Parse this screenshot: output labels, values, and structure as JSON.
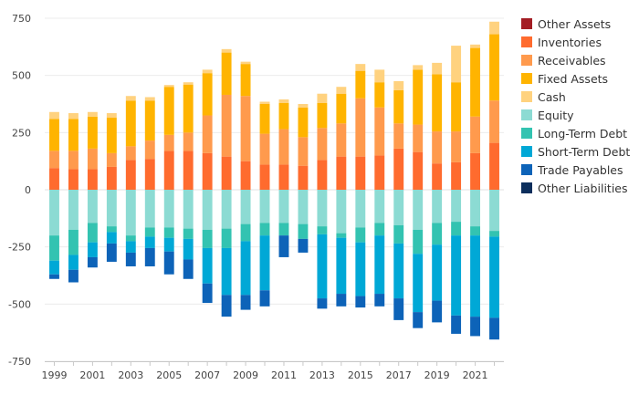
{
  "chart_data": {
    "type": "bar",
    "stacked": true,
    "diverging": true,
    "title": "",
    "xlabel": "",
    "ylabel": "",
    "ylim": [
      -750,
      750
    ],
    "yticks": [
      750,
      500,
      250,
      0,
      -250,
      -500,
      -750
    ],
    "ytick_labels": [
      "750",
      "500",
      "250",
      "0",
      "-250",
      "-500",
      "-750"
    ],
    "xticks": [
      1999,
      2001,
      2003,
      2005,
      2007,
      2009,
      2011,
      2013,
      2015,
      2017,
      2019,
      2021
    ],
    "xtick_labels": [
      "1999",
      "2001",
      "2003",
      "2005",
      "2007",
      "2009",
      "2011",
      "2013",
      "2015",
      "2017",
      "2019",
      "2021"
    ],
    "grid": "horizontal",
    "legend_position": "right",
    "x": [
      1999,
      2000,
      2001,
      2002,
      2003,
      2004,
      2005,
      2006,
      2007,
      2008,
      2009,
      2010,
      2011,
      2012,
      2013,
      2014,
      2015,
      2016,
      2017,
      2018,
      2019,
      2020,
      2021,
      2022
    ],
    "series": [
      {
        "name": "Other Assets",
        "color": "#a31d24",
        "values": [
          0,
          0,
          0,
          0,
          0,
          0,
          0,
          0,
          0,
          0,
          0,
          0,
          0,
          0,
          0,
          0,
          0,
          0,
          0,
          0,
          0,
          0,
          0,
          0
        ]
      },
      {
        "name": "Inventories",
        "color": "#ff6b2e",
        "values": [
          95,
          90,
          90,
          100,
          130,
          135,
          170,
          170,
          160,
          145,
          125,
          110,
          110,
          105,
          130,
          145,
          145,
          150,
          180,
          165,
          115,
          120,
          160,
          205
        ]
      },
      {
        "name": "Receivables",
        "color": "#ff9a4d",
        "values": [
          75,
          80,
          90,
          60,
          60,
          80,
          70,
          80,
          165,
          270,
          285,
          135,
          155,
          125,
          140,
          145,
          255,
          210,
          110,
          120,
          140,
          135,
          160,
          185
        ]
      },
      {
        "name": "Fixed Assets",
        "color": "#ffb400",
        "values": [
          140,
          140,
          140,
          155,
          200,
          175,
          210,
          210,
          185,
          185,
          140,
          130,
          115,
          130,
          110,
          130,
          120,
          110,
          145,
          240,
          250,
          215,
          300,
          290
        ]
      },
      {
        "name": "Cash",
        "color": "#ffd27f",
        "values": [
          30,
          25,
          20,
          20,
          20,
          15,
          8,
          10,
          15,
          15,
          10,
          10,
          15,
          15,
          40,
          30,
          30,
          55,
          40,
          20,
          50,
          160,
          15,
          55
        ]
      },
      {
        "name": "Equity",
        "color": "#8cdbd3",
        "values": [
          -200,
          -175,
          -145,
          -160,
          -200,
          -165,
          -165,
          -170,
          -175,
          -170,
          -150,
          -145,
          -145,
          -150,
          -160,
          -190,
          -165,
          -145,
          -155,
          -175,
          -145,
          -140,
          -160,
          -180
        ]
      },
      {
        "name": "Long-Term Debt",
        "color": "#33c3b1",
        "values": [
          -110,
          -110,
          -85,
          -25,
          -25,
          -40,
          -45,
          -45,
          -80,
          -85,
          -75,
          -55,
          -55,
          -65,
          -35,
          -20,
          -65,
          -55,
          -80,
          -105,
          -95,
          -60,
          -40,
          -25
        ]
      },
      {
        "name": "Short-Term Debt",
        "color": "#00a8d6",
        "values": [
          -60,
          -65,
          -65,
          -50,
          -50,
          -50,
          -60,
          -90,
          -155,
          -205,
          -235,
          -240,
          0,
          0,
          -280,
          -245,
          -235,
          -255,
          -240,
          -255,
          -245,
          -350,
          -355,
          -355
        ]
      },
      {
        "name": "Trade Payables",
        "color": "#0d63b8",
        "values": [
          -20,
          -55,
          -45,
          -80,
          -60,
          -80,
          -100,
          -85,
          -85,
          -95,
          -65,
          -70,
          -95,
          -60,
          -45,
          -55,
          -50,
          -55,
          -95,
          -70,
          -95,
          -80,
          -85,
          -95
        ]
      },
      {
        "name": "Other Liabilities",
        "color": "#0c2e5c",
        "values": [
          0,
          0,
          0,
          0,
          0,
          0,
          0,
          0,
          0,
          0,
          0,
          0,
          0,
          0,
          0,
          0,
          0,
          0,
          0,
          0,
          0,
          0,
          0,
          0
        ]
      }
    ]
  }
}
